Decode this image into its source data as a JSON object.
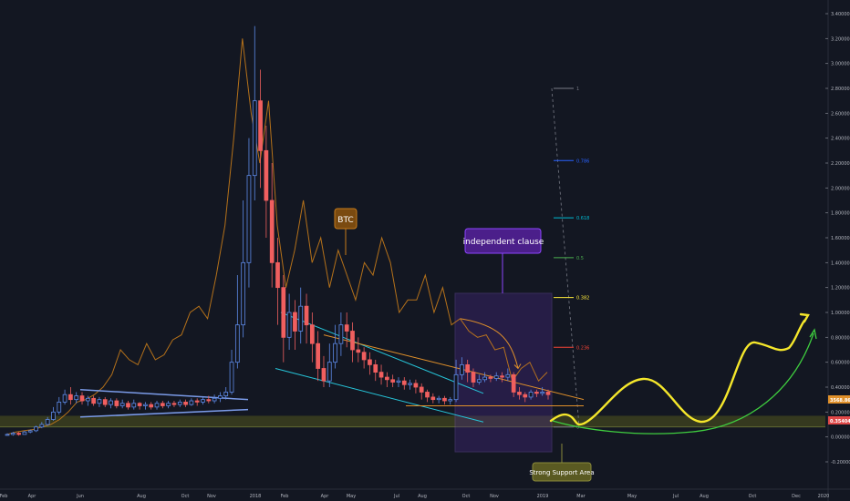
{
  "chart_data": {
    "type": "candlestick",
    "y_axis_ticks": [
      "3.40000",
      "3.20000",
      "3.00000",
      "2.80000",
      "2.60000",
      "2.40000",
      "2.20000",
      "2.00000",
      "1.80000",
      "1.60000",
      "1.40000",
      "1.20000",
      "1.00000",
      "0.80000",
      "0.60000",
      "0.40000",
      "0.20000",
      "0.00000",
      "-0.20000"
    ],
    "x_axis_ticks": [
      "Feb",
      "Apr",
      "Jun",
      "Aug",
      "Oct",
      "Nov",
      "2018",
      "Feb",
      "Apr",
      "May",
      "Jul",
      "Aug",
      "Oct",
      "Nov",
      "2019",
      "Mar",
      "May",
      "Jul",
      "Aug",
      "Oct",
      "Dec",
      "2020"
    ],
    "ylim": [
      -0.2,
      3.4
    ],
    "price_tags": {
      "btc_overlay": "3568.86",
      "current": "0.35404"
    },
    "fib_levels": [
      {
        "label": "1",
        "value": 2.8,
        "color": "#787b86"
      },
      {
        "label": "0.786",
        "value": 2.22,
        "color": "#2962ff"
      },
      {
        "label": "0.618",
        "value": 1.76,
        "color": "#00bcd4"
      },
      {
        "label": "0.5",
        "value": 1.44,
        "color": "#4caf50"
      },
      {
        "label": "0.382",
        "value": 1.12,
        "color": "#ffeb3b"
      },
      {
        "label": "0.236",
        "value": 0.72,
        "color": "#f44336"
      },
      {
        "label": "0",
        "value": 0.08,
        "color": "#787b86"
      }
    ],
    "annotations": {
      "btc_label": "BTC",
      "clause_label": "independent clause",
      "support_label": "Strong Support Area"
    },
    "candles": [
      [
        0.02,
        0.02,
        0.03,
        0.01
      ],
      [
        0.02,
        0.03,
        0.04,
        0.01
      ],
      [
        0.03,
        0.02,
        0.04,
        0.01
      ],
      [
        0.02,
        0.04,
        0.05,
        0.02
      ],
      [
        0.04,
        0.05,
        0.06,
        0.03
      ],
      [
        0.05,
        0.08,
        0.09,
        0.04
      ],
      [
        0.08,
        0.1,
        0.12,
        0.07
      ],
      [
        0.1,
        0.14,
        0.16,
        0.09
      ],
      [
        0.14,
        0.2,
        0.24,
        0.13
      ],
      [
        0.2,
        0.28,
        0.32,
        0.18
      ],
      [
        0.28,
        0.34,
        0.38,
        0.26
      ],
      [
        0.34,
        0.3,
        0.4,
        0.26
      ],
      [
        0.3,
        0.33,
        0.36,
        0.27
      ],
      [
        0.33,
        0.29,
        0.36,
        0.26
      ],
      [
        0.29,
        0.31,
        0.33,
        0.25
      ],
      [
        0.31,
        0.27,
        0.33,
        0.25
      ],
      [
        0.27,
        0.3,
        0.32,
        0.24
      ],
      [
        0.3,
        0.26,
        0.32,
        0.24
      ],
      [
        0.26,
        0.29,
        0.31,
        0.23
      ],
      [
        0.29,
        0.25,
        0.31,
        0.23
      ],
      [
        0.25,
        0.27,
        0.3,
        0.23
      ],
      [
        0.27,
        0.24,
        0.29,
        0.22
      ],
      [
        0.24,
        0.27,
        0.3,
        0.22
      ],
      [
        0.27,
        0.25,
        0.28,
        0.22
      ],
      [
        0.25,
        0.26,
        0.28,
        0.22
      ],
      [
        0.26,
        0.24,
        0.28,
        0.22
      ],
      [
        0.24,
        0.27,
        0.29,
        0.22
      ],
      [
        0.27,
        0.25,
        0.29,
        0.23
      ],
      [
        0.25,
        0.27,
        0.29,
        0.23
      ],
      [
        0.27,
        0.26,
        0.29,
        0.24
      ],
      [
        0.26,
        0.28,
        0.3,
        0.24
      ],
      [
        0.28,
        0.26,
        0.3,
        0.24
      ],
      [
        0.26,
        0.29,
        0.31,
        0.25
      ],
      [
        0.29,
        0.28,
        0.31,
        0.25
      ],
      [
        0.28,
        0.3,
        0.32,
        0.26
      ],
      [
        0.3,
        0.29,
        0.33,
        0.27
      ],
      [
        0.29,
        0.31,
        0.34,
        0.27
      ],
      [
        0.31,
        0.33,
        0.36,
        0.28
      ],
      [
        0.33,
        0.36,
        0.4,
        0.3
      ],
      [
        0.36,
        0.6,
        0.7,
        0.34
      ],
      [
        0.6,
        0.9,
        1.3,
        0.55
      ],
      [
        0.9,
        1.4,
        1.9,
        0.8
      ],
      [
        1.4,
        2.1,
        2.4,
        1.2
      ],
      [
        2.1,
        2.7,
        3.3,
        1.9
      ],
      [
        2.7,
        2.3,
        2.95,
        2.0
      ],
      [
        2.3,
        1.9,
        2.5,
        1.6
      ],
      [
        1.9,
        1.4,
        2.2,
        1.2
      ],
      [
        1.4,
        1.2,
        1.6,
        0.9
      ],
      [
        1.2,
        0.8,
        1.3,
        0.6
      ],
      [
        0.8,
        1.0,
        1.15,
        0.7
      ],
      [
        1.0,
        0.85,
        1.1,
        0.7
      ],
      [
        0.85,
        1.05,
        1.2,
        0.75
      ],
      [
        1.05,
        0.9,
        1.15,
        0.75
      ],
      [
        0.9,
        0.75,
        1.0,
        0.6
      ],
      [
        0.75,
        0.55,
        0.85,
        0.45
      ],
      [
        0.55,
        0.45,
        0.65,
        0.4
      ],
      [
        0.45,
        0.6,
        0.75,
        0.4
      ],
      [
        0.6,
        0.75,
        0.9,
        0.55
      ],
      [
        0.75,
        0.9,
        1.0,
        0.65
      ],
      [
        0.9,
        0.85,
        1.0,
        0.72
      ],
      [
        0.85,
        0.7,
        0.92,
        0.6
      ],
      [
        0.7,
        0.68,
        0.8,
        0.6
      ],
      [
        0.68,
        0.62,
        0.72,
        0.55
      ],
      [
        0.62,
        0.58,
        0.68,
        0.5
      ],
      [
        0.58,
        0.52,
        0.62,
        0.45
      ],
      [
        0.52,
        0.48,
        0.58,
        0.42
      ],
      [
        0.48,
        0.46,
        0.52,
        0.4
      ],
      [
        0.46,
        0.44,
        0.5,
        0.4
      ],
      [
        0.44,
        0.45,
        0.48,
        0.4
      ],
      [
        0.45,
        0.42,
        0.48,
        0.38
      ],
      [
        0.42,
        0.43,
        0.46,
        0.38
      ],
      [
        0.43,
        0.4,
        0.46,
        0.35
      ],
      [
        0.4,
        0.36,
        0.43,
        0.3
      ],
      [
        0.36,
        0.32,
        0.38,
        0.28
      ],
      [
        0.32,
        0.3,
        0.35,
        0.27
      ],
      [
        0.3,
        0.31,
        0.33,
        0.27
      ],
      [
        0.31,
        0.29,
        0.33,
        0.26
      ],
      [
        0.29,
        0.3,
        0.32,
        0.26
      ],
      [
        0.3,
        0.5,
        0.62,
        0.28
      ],
      [
        0.5,
        0.58,
        0.64,
        0.46
      ],
      [
        0.58,
        0.52,
        0.62,
        0.44
      ],
      [
        0.52,
        0.44,
        0.55,
        0.4
      ],
      [
        0.44,
        0.46,
        0.5,
        0.42
      ],
      [
        0.46,
        0.48,
        0.52,
        0.44
      ],
      [
        0.48,
        0.47,
        0.5,
        0.44
      ],
      [
        0.47,
        0.49,
        0.52,
        0.45
      ],
      [
        0.49,
        0.48,
        0.52,
        0.44
      ],
      [
        0.48,
        0.5,
        0.55,
        0.45
      ],
      [
        0.5,
        0.36,
        0.52,
        0.32
      ],
      [
        0.36,
        0.34,
        0.4,
        0.3
      ],
      [
        0.34,
        0.32,
        0.36,
        0.28
      ],
      [
        0.32,
        0.36,
        0.38,
        0.3
      ],
      [
        0.36,
        0.35,
        0.38,
        0.32
      ],
      [
        0.35,
        0.36,
        0.4,
        0.33
      ],
      [
        0.36,
        0.34,
        0.38,
        0.3
      ]
    ]
  }
}
